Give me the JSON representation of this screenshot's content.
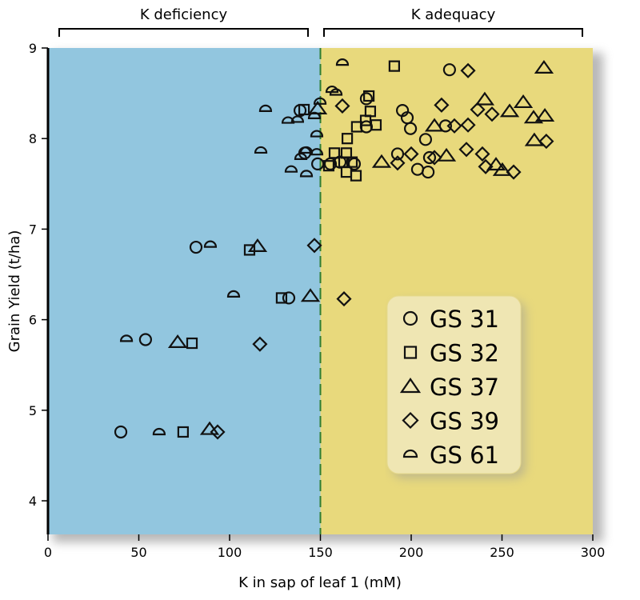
{
  "chart_data": {
    "type": "scatter",
    "title": "",
    "xlabel": "K in sap of leaf 1 (mM)",
    "ylabel": "Grain Yield (t/ha)",
    "xlim": [
      0,
      300
    ],
    "ylim": [
      3.63,
      9
    ],
    "xticks": [
      "0",
      "50",
      "100",
      "150",
      "200",
      "250",
      "300"
    ],
    "yticks": [
      "4",
      "5",
      "6",
      "7",
      "8",
      "9"
    ],
    "grid": false,
    "threshold_x": 150,
    "regions": [
      {
        "label": "K deficiency",
        "from": 0,
        "to": 150,
        "color": "#92c6df"
      },
      {
        "label": "K adequacy",
        "from": 150,
        "to": 300,
        "color": "#e8d97c"
      }
    ],
    "legend_position": "center-right",
    "series": [
      {
        "name": "GS 31",
        "marker": "circle",
        "points": [
          [
            40.1,
            4.76
          ],
          [
            53.7,
            5.78
          ],
          [
            81.5,
            6.8
          ],
          [
            132.6,
            6.24
          ],
          [
            138.8,
            8.31
          ],
          [
            141.4,
            7.84
          ],
          [
            148.5,
            7.72
          ],
          [
            155.5,
            7.72
          ],
          [
            160.8,
            7.74
          ],
          [
            168.7,
            7.72
          ],
          [
            175.3,
            8.44
          ],
          [
            175.3,
            8.13
          ],
          [
            195.2,
            8.31
          ],
          [
            197.8,
            8.23
          ],
          [
            199.6,
            8.11
          ],
          [
            192.5,
            7.83
          ],
          [
            207.9,
            7.99
          ],
          [
            203.5,
            7.66
          ],
          [
            209.3,
            7.63
          ],
          [
            210.1,
            7.79
          ],
          [
            218.9,
            8.14
          ],
          [
            221.1,
            8.76
          ]
        ]
      },
      {
        "name": "GS 32",
        "marker": "square",
        "points": [
          [
            74.4,
            4.76
          ],
          [
            79.3,
            5.74
          ],
          [
            111.0,
            6.77
          ],
          [
            128.6,
            6.24
          ],
          [
            141.0,
            8.32
          ],
          [
            176.7,
            8.47
          ],
          [
            190.7,
            8.8
          ],
          [
            177.5,
            8.3
          ],
          [
            174.9,
            8.2
          ],
          [
            180.6,
            8.15
          ],
          [
            170.0,
            8.13
          ],
          [
            164.8,
            8.0
          ],
          [
            157.7,
            7.84
          ],
          [
            164.3,
            7.84
          ],
          [
            154.6,
            7.7
          ],
          [
            163.0,
            7.74
          ],
          [
            167.4,
            7.74
          ],
          [
            164.3,
            7.63
          ],
          [
            169.6,
            7.59
          ]
        ]
      },
      {
        "name": "GS 37",
        "marker": "triangle",
        "points": [
          [
            89.0,
            4.79
          ],
          [
            71.4,
            5.75
          ],
          [
            115.4,
            6.81
          ],
          [
            144.5,
            6.26
          ],
          [
            148.5,
            8.33
          ],
          [
            183.7,
            7.74
          ],
          [
            273.1,
            8.78
          ],
          [
            240.5,
            8.43
          ],
          [
            261.7,
            8.4
          ],
          [
            254.2,
            8.3
          ],
          [
            267.4,
            8.23
          ],
          [
            273.6,
            8.25
          ],
          [
            212.8,
            8.14
          ],
          [
            267.8,
            7.98
          ],
          [
            219.4,
            7.81
          ],
          [
            246.7,
            7.71
          ],
          [
            250.2,
            7.65
          ]
        ]
      },
      {
        "name": "GS 39",
        "marker": "diamond",
        "points": [
          [
            93.4,
            4.76
          ],
          [
            116.7,
            5.73
          ],
          [
            146.7,
            6.82
          ],
          [
            163.0,
            6.23
          ],
          [
            162.1,
            8.36
          ],
          [
            200.0,
            7.83
          ],
          [
            192.5,
            7.73
          ],
          [
            231.3,
            8.75
          ],
          [
            216.7,
            8.37
          ],
          [
            236.6,
            8.32
          ],
          [
            244.5,
            8.27
          ],
          [
            223.8,
            8.14
          ],
          [
            231.3,
            8.15
          ],
          [
            274.4,
            7.97
          ],
          [
            230.4,
            7.88
          ],
          [
            239.2,
            7.83
          ],
          [
            241.0,
            7.69
          ],
          [
            256.4,
            7.63
          ],
          [
            212.8,
            7.79
          ]
        ]
      },
      {
        "name": "GS 61",
        "marker": "half-circle",
        "points": [
          [
            61.2,
            4.76
          ],
          [
            43.2,
            5.79
          ],
          [
            89.4,
            6.83
          ],
          [
            102.2,
            6.28
          ],
          [
            162.1,
            8.84
          ],
          [
            156.4,
            8.54
          ],
          [
            158.6,
            8.51
          ],
          [
            149.8,
            8.41
          ],
          [
            146.7,
            8.25
          ],
          [
            137.4,
            8.21
          ],
          [
            148.0,
            8.05
          ],
          [
            142.3,
            7.87
          ],
          [
            139.2,
            7.8
          ],
          [
            148.0,
            7.85
          ],
          [
            133.9,
            7.66
          ],
          [
            142.3,
            7.61
          ],
          [
            119.8,
            8.33
          ],
          [
            117.2,
            7.87
          ],
          [
            132.2,
            8.2
          ]
        ]
      }
    ]
  }
}
